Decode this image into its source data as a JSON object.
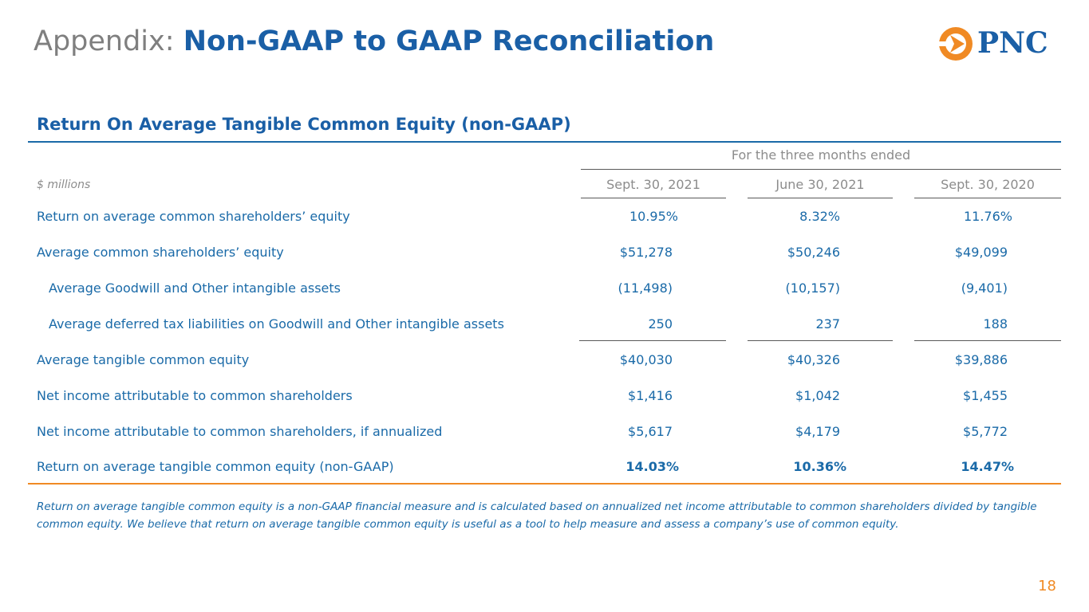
{
  "header": {
    "title_prefix": "Appendix:",
    "title_main": "Non-GAAP to GAAP Reconciliation",
    "brand": "PNC"
  },
  "section_title": "Return On Average Tangible Common Equity (non-GAAP)",
  "table": {
    "period_header": "For the three months ended",
    "units_label": "$ millions",
    "columns": [
      "Sept. 30, 2021",
      "June 30, 2021",
      "Sept. 30, 2020"
    ],
    "rows": [
      {
        "label": "Return on average common shareholders’ equity",
        "values": [
          "10.95%",
          "8.32%",
          "11.76%"
        ]
      },
      {
        "label": "Average common shareholders’ equity",
        "values": [
          "$51,278",
          "$50,246",
          "$49,099"
        ]
      },
      {
        "label": "Average Goodwill and Other intangible assets",
        "values": [
          "(11,498)",
          "(10,157)",
          "(9,401)"
        ]
      },
      {
        "label": "Average deferred tax liabilities on Goodwill and Other intangible assets",
        "values": [
          "250",
          "237",
          "188"
        ]
      },
      {
        "label": "Average tangible common equity",
        "values": [
          "$40,030",
          "$40,326",
          "$39,886"
        ]
      },
      {
        "label": "Net income attributable to common shareholders",
        "values": [
          "$1,416",
          "$1,042",
          "$1,455"
        ]
      },
      {
        "label": "Net income attributable to common shareholders, if annualized",
        "values": [
          "$5,617",
          "$4,179",
          "$5,772"
        ]
      },
      {
        "label": "Return on average tangible common equity (non-GAAP)",
        "values": [
          "14.03%",
          "10.36%",
          "14.47%"
        ]
      }
    ]
  },
  "footnote": "Return on average tangible common equity is a non-GAAP financial measure and is calculated based on annualized net income attributable to common shareholders divided by tangible common equity. We believe that return on average tangible common equity is useful as a tool to help measure and assess a company’s use of common equity.",
  "page_number": "18",
  "colors": {
    "blue": "#1a6aa8",
    "title_blue": "#1a5fa6",
    "orange": "#f08a24",
    "gray": "#8c8c8c"
  }
}
